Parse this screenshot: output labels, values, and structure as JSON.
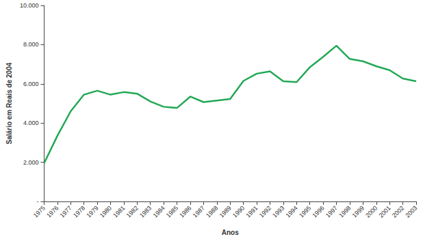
{
  "chart_data": {
    "type": "line",
    "x_label": "Anos",
    "y_label": "Salário em Reais de 2004",
    "categories": [
      "1975",
      "1976",
      "1977",
      "1978",
      "1979",
      "1980",
      "1981",
      "1982",
      "1983",
      "1984",
      "1985",
      "1986",
      "1987",
      "1988",
      "1989",
      "1990",
      "1991",
      "1992",
      "1993",
      "1994",
      "1995",
      "1996",
      "1997",
      "1998",
      "1999",
      "2000",
      "2001",
      "2002",
      "2003"
    ],
    "values": [
      1950,
      3350,
      4600,
      5450,
      5650,
      5450,
      5580,
      5500,
      5100,
      4830,
      4770,
      5350,
      5070,
      5150,
      5230,
      6150,
      6520,
      6640,
      6130,
      6090,
      6850,
      7380,
      7950,
      7270,
      7150,
      6900,
      6700,
      6270,
      6130
    ],
    "color": "#22a855",
    "ylim": [
      0,
      10000
    ],
    "yticks": [
      {
        "value": 0,
        "label": "-"
      },
      {
        "value": 2000,
        "label": "2.000"
      },
      {
        "value": 4000,
        "label": "4.000"
      },
      {
        "value": 6000,
        "label": "6.000"
      },
      {
        "value": 8000,
        "label": "8.000"
      },
      {
        "value": 10000,
        "label": "10.000"
      }
    ],
    "grid": false
  }
}
